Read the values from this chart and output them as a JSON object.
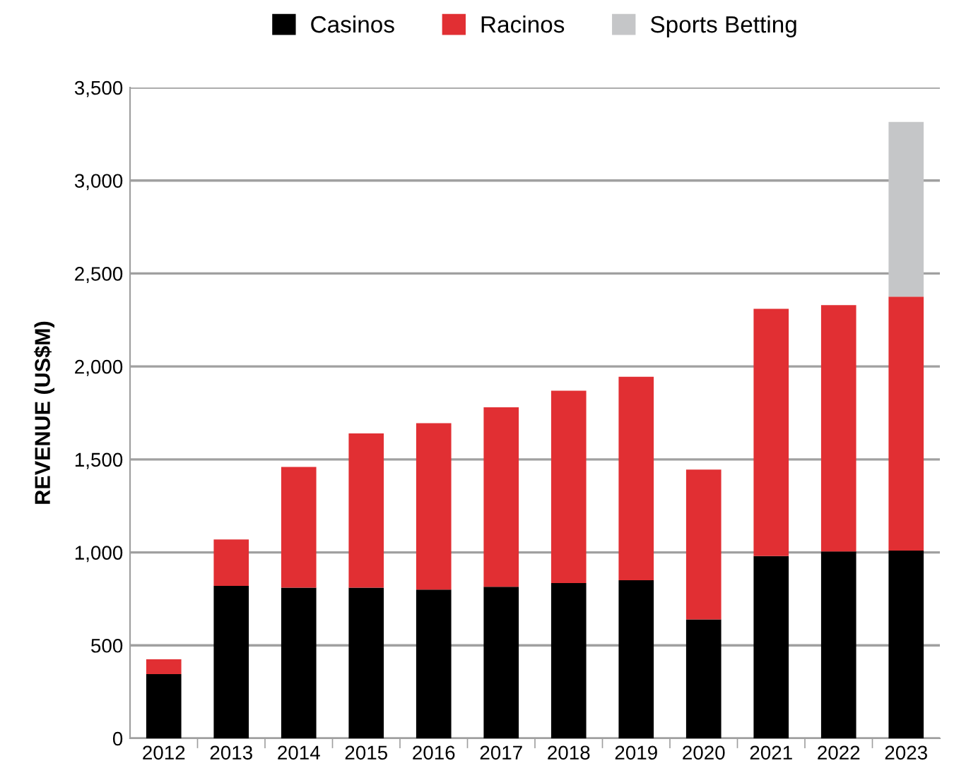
{
  "chart_data": {
    "type": "bar",
    "stacked": true,
    "ylabel": "REVENUE (US$M)",
    "categories": [
      "2012",
      "2013",
      "2014",
      "2015",
      "2016",
      "2017",
      "2018",
      "2019",
      "2020",
      "2021",
      "2022",
      "2023"
    ],
    "series": [
      {
        "name": "Casinos",
        "color": "#000000",
        "values": [
          345,
          820,
          810,
          810,
          800,
          815,
          835,
          850,
          640,
          980,
          1005,
          1010
        ]
      },
      {
        "name": "Racinos",
        "color": "#e12f33",
        "values": [
          80,
          250,
          650,
          830,
          895,
          965,
          1035,
          1095,
          805,
          1330,
          1325,
          1365
        ]
      },
      {
        "name": "Sports Betting",
        "color": "#c5c6c8",
        "values": [
          null,
          null,
          null,
          null,
          null,
          null,
          null,
          null,
          null,
          null,
          null,
          940
        ]
      }
    ],
    "ylim": [
      0,
      3500
    ],
    "yticks": [
      0,
      {
        "value": 500,
        "label": "500"
      },
      {
        "value": 1000,
        "label": "1,000"
      },
      {
        "value": 1500,
        "label": "1,500"
      },
      {
        "value": 2000,
        "label": "2,000"
      },
      {
        "value": 2500,
        "label": "2,500"
      },
      {
        "value": 3000,
        "label": "3,000"
      },
      {
        "value": 3500,
        "label": "3,500"
      }
    ],
    "grid": "y",
    "legend": "top"
  }
}
